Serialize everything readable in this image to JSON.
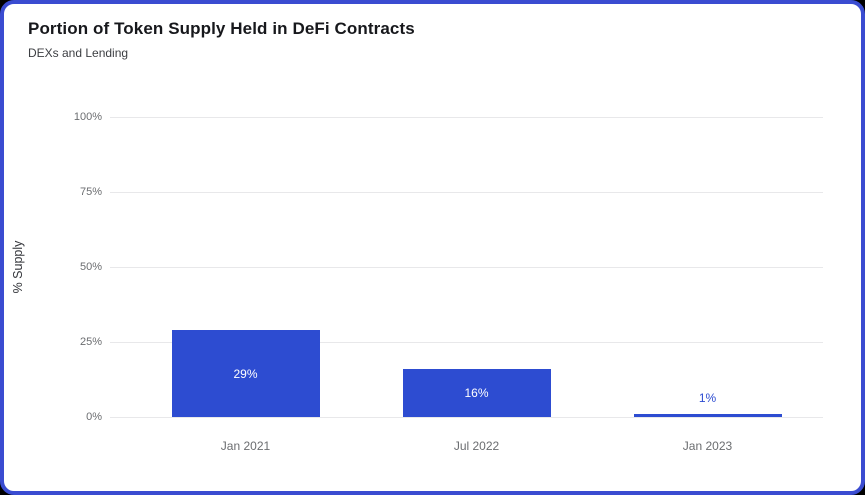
{
  "card": {
    "title": "Portion of Token Supply Held in DeFi Contracts",
    "subtitle": "DEXs and Lending"
  },
  "chart_data": {
    "type": "bar",
    "title": "Portion of Token Supply Held in DeFi Contracts",
    "subtitle": "DEXs and Lending",
    "categories": [
      "Jan 2021",
      "Jul 2022",
      "Jan 2023"
    ],
    "values": [
      29,
      16,
      1
    ],
    "value_labels": [
      "29%",
      "16%",
      "1%"
    ],
    "xlabel": "",
    "ylabel": "% Supply",
    "ylim": [
      0,
      100
    ],
    "yticks": [
      0,
      25,
      50,
      75,
      100
    ],
    "ytick_labels": [
      "0%",
      "25%",
      "50%",
      "75%",
      "100%"
    ],
    "grid": true,
    "legend": "none",
    "bar_color": "#2d4cd1",
    "inside_label_color": "#ffffff",
    "outside_label_color": "#2d4cd1",
    "gridline_color": "#e8e8ea"
  }
}
